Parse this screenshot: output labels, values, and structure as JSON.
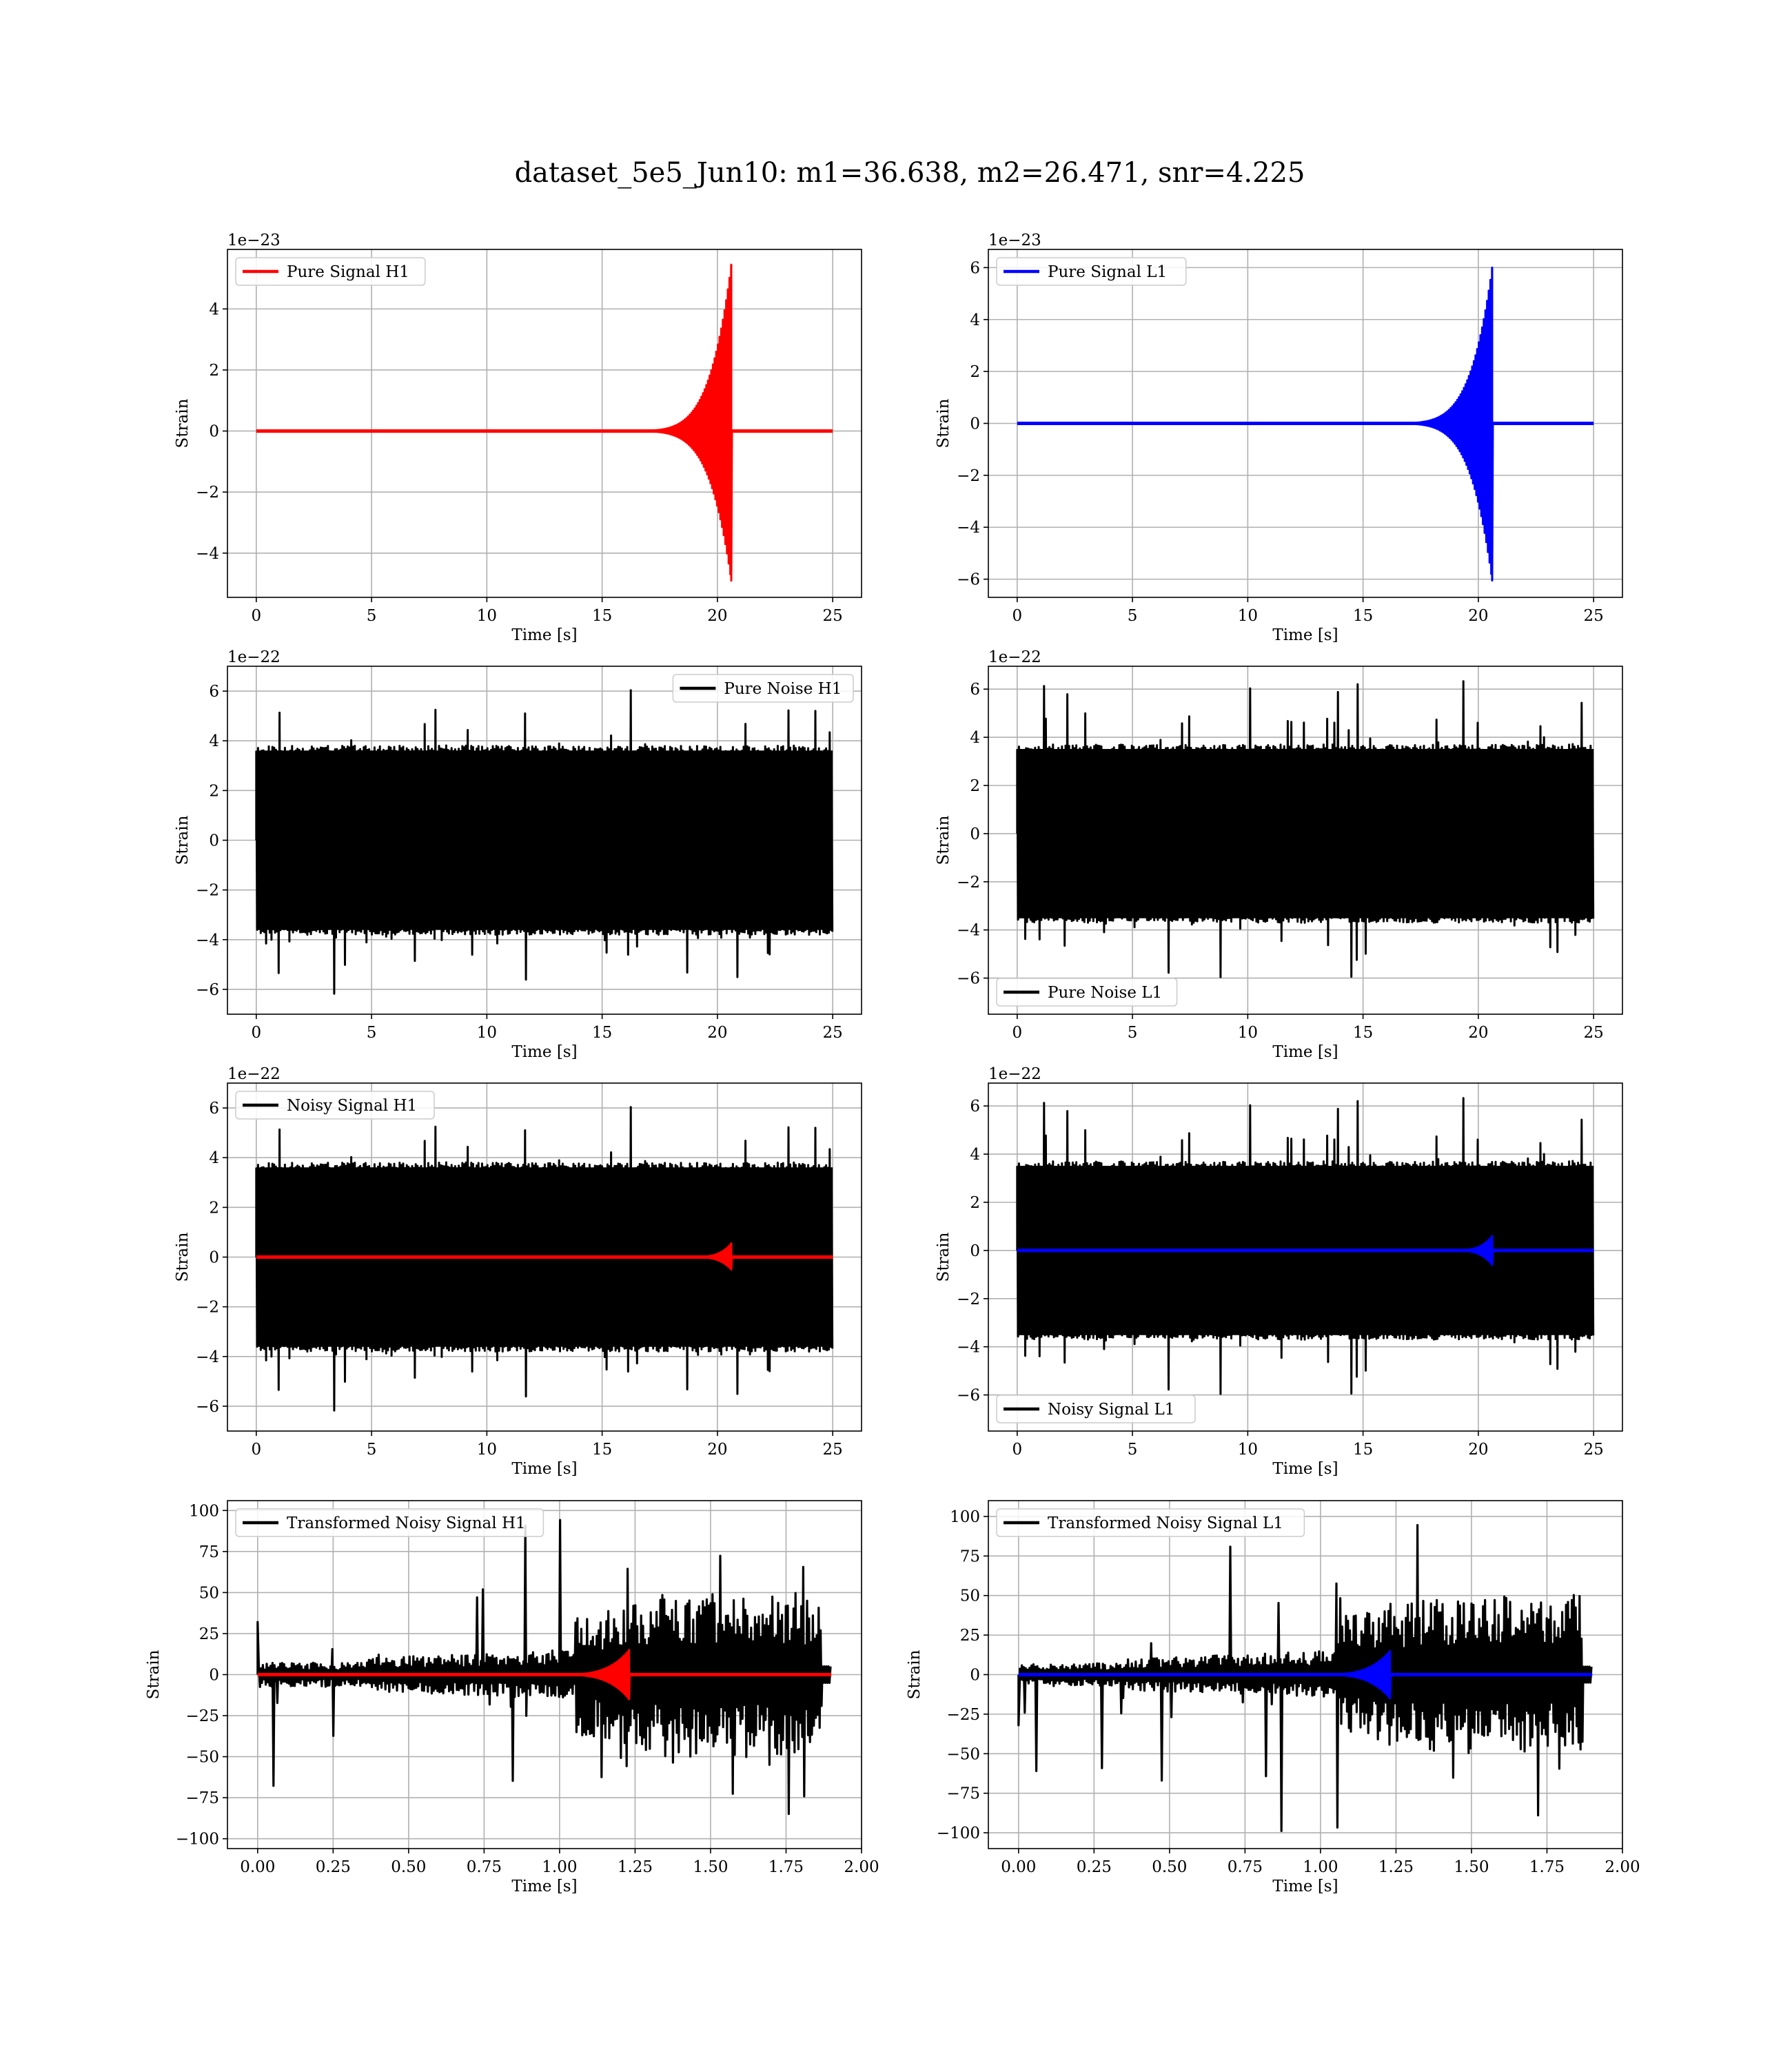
{
  "suptitle": "dataset_5e5_Jun10: m1=36.638, m2=26.471, snr=4.225",
  "chart_data": [
    {
      "type": "line",
      "id": "p1",
      "ylabel": "Strain",
      "xlabel": "Time [s]",
      "offset": "1e−23",
      "xlim": [
        -1.25,
        26.25
      ],
      "ylim": [
        -5.45,
        5.95
      ],
      "xticks": [
        0,
        5,
        10,
        15,
        20,
        25
      ],
      "xtick_labels": [
        "0",
        "5",
        "10",
        "15",
        "20",
        "25"
      ],
      "yticks": [
        -4,
        -2,
        0,
        2,
        4
      ],
      "ytick_labels": [
        "−4",
        "−2",
        "0",
        "2",
        "4"
      ],
      "legend_loc": "upper-left",
      "series": [
        {
          "name": "Pure Signal H1",
          "color": "#ff0000",
          "kind": "chirp",
          "x_range": [
            0,
            25
          ],
          "merger_x": 20.6,
          "start_x": 15.0,
          "peak_pos": 5.45,
          "peak_neg": -4.9,
          "stem": 1.6
        }
      ]
    },
    {
      "type": "line",
      "id": "p2",
      "ylabel": "Strain",
      "xlabel": "Time [s]",
      "offset": "1e−23",
      "xlim": [
        -1.25,
        26.25
      ],
      "ylim": [
        -6.7,
        6.7
      ],
      "xticks": [
        0,
        5,
        10,
        15,
        20,
        25
      ],
      "xtick_labels": [
        "0",
        "5",
        "10",
        "15",
        "20",
        "25"
      ],
      "yticks": [
        -6,
        -4,
        -2,
        0,
        2,
        4,
        6
      ],
      "ytick_labels": [
        "−6",
        "−4",
        "−2",
        "0",
        "2",
        "4",
        "6"
      ],
      "legend_loc": "upper-left",
      "series": [
        {
          "name": "Pure Signal L1",
          "color": "#0000ff",
          "kind": "chirp",
          "x_range": [
            0,
            25
          ],
          "merger_x": 20.6,
          "start_x": 15.0,
          "peak_pos": 6.0,
          "peak_neg": -6.05,
          "stem": 1.75
        }
      ]
    },
    {
      "type": "line",
      "id": "p3",
      "ylabel": "Strain",
      "xlabel": "Time [s]",
      "offset": "1e−22",
      "xlim": [
        -1.25,
        26.25
      ],
      "ylim": [
        -7.0,
        7.0
      ],
      "xticks": [
        0,
        5,
        10,
        15,
        20,
        25
      ],
      "xtick_labels": [
        "0",
        "5",
        "10",
        "15",
        "20",
        "25"
      ],
      "yticks": [
        -6,
        -4,
        -2,
        0,
        2,
        4,
        6
      ],
      "ytick_labels": [
        "−6",
        "−4",
        "−2",
        "0",
        "2",
        "4",
        "6"
      ],
      "legend_loc": "upper-right",
      "series": [
        {
          "name": "Pure Noise H1",
          "color": "#000000",
          "kind": "noise",
          "x_range": [
            0,
            25
          ],
          "band": [
            -3.8,
            3.8
          ],
          "spike_max": 6.2,
          "seed": 11
        }
      ]
    },
    {
      "type": "line",
      "id": "p4",
      "ylabel": "Strain",
      "xlabel": "Time [s]",
      "offset": "1e−22",
      "xlim": [
        -1.25,
        26.25
      ],
      "ylim": [
        -7.5,
        6.95
      ],
      "xticks": [
        0,
        5,
        10,
        15,
        20,
        25
      ],
      "xtick_labels": [
        "0",
        "5",
        "10",
        "15",
        "20",
        "25"
      ],
      "yticks": [
        -6,
        -4,
        -2,
        0,
        2,
        4,
        6
      ],
      "ytick_labels": [
        "−6",
        "−4",
        "−2",
        "0",
        "2",
        "4",
        "6"
      ],
      "legend_loc": "lower-left",
      "series": [
        {
          "name": "Pure Noise L1",
          "color": "#000000",
          "kind": "noise",
          "x_range": [
            0,
            25
          ],
          "band": [
            -3.7,
            3.7
          ],
          "spike_max": 6.4,
          "seed": 23
        }
      ]
    },
    {
      "type": "line",
      "id": "p5",
      "ylabel": "Strain",
      "xlabel": "Time [s]",
      "offset": "1e−22",
      "xlim": [
        -1.25,
        26.25
      ],
      "ylim": [
        -7.0,
        7.0
      ],
      "xticks": [
        0,
        5,
        10,
        15,
        20,
        25
      ],
      "xtick_labels": [
        "0",
        "5",
        "10",
        "15",
        "20",
        "25"
      ],
      "yticks": [
        -6,
        -4,
        -2,
        0,
        2,
        4,
        6
      ],
      "ytick_labels": [
        "−6",
        "−4",
        "−2",
        "0",
        "2",
        "4",
        "6"
      ],
      "legend_loc": "upper-left",
      "series": [
        {
          "name": "Noisy Signal H1",
          "color": "#000000",
          "kind": "noise",
          "x_range": [
            0,
            25
          ],
          "band": [
            -3.8,
            3.8
          ],
          "spike_max": 6.2,
          "seed": 11
        },
        {
          "name": "",
          "color": "#ff0000",
          "kind": "chirp",
          "x_range": [
            0,
            25
          ],
          "merger_x": 20.6,
          "start_x": 18.5,
          "peak_pos": 0.55,
          "peak_neg": -0.5,
          "stem": 0.0
        }
      ]
    },
    {
      "type": "line",
      "id": "p6",
      "ylabel": "Strain",
      "xlabel": "Time [s]",
      "offset": "1e−22",
      "xlim": [
        -1.25,
        26.25
      ],
      "ylim": [
        -7.5,
        6.95
      ],
      "xticks": [
        0,
        5,
        10,
        15,
        20,
        25
      ],
      "xtick_labels": [
        "0",
        "5",
        "10",
        "15",
        "20",
        "25"
      ],
      "yticks": [
        -6,
        -4,
        -2,
        0,
        2,
        4,
        6
      ],
      "ytick_labels": [
        "−6",
        "−4",
        "−2",
        "0",
        "2",
        "4",
        "6"
      ],
      "legend_loc": "lower-left",
      "series": [
        {
          "name": "Noisy Signal L1",
          "color": "#000000",
          "kind": "noise",
          "x_range": [
            0,
            25
          ],
          "band": [
            -3.7,
            3.7
          ],
          "spike_max": 6.4,
          "seed": 23
        },
        {
          "name": "",
          "color": "#0000ff",
          "kind": "chirp",
          "x_range": [
            0,
            25
          ],
          "merger_x": 20.6,
          "start_x": 18.5,
          "peak_pos": 0.6,
          "peak_neg": -0.6,
          "stem": 0.0
        }
      ]
    },
    {
      "type": "line",
      "id": "p7",
      "ylabel": "Strain",
      "xlabel": "Time [s]",
      "offset": "",
      "xlim": [
        -0.1,
        2.0
      ],
      "ylim": [
        -106,
        106
      ],
      "xticks": [
        0,
        0.25,
        0.5,
        0.75,
        1.0,
        1.25,
        1.5,
        1.75,
        2.0
      ],
      "xtick_labels": [
        "0.00",
        "0.25",
        "0.50",
        "0.75",
        "1.00",
        "1.25",
        "1.50",
        "1.75",
        "2.00"
      ],
      "yticks": [
        -100,
        -75,
        -50,
        -25,
        0,
        25,
        50,
        75,
        100
      ],
      "ytick_labels": [
        "−100",
        "−75",
        "−50",
        "−25",
        "0",
        "25",
        "50",
        "75",
        "100"
      ],
      "legend_loc": "upper-left",
      "series": [
        {
          "name": "Transformed Noisy Signal H1",
          "color": "#000000",
          "kind": "tnoise",
          "x_range": [
            0,
            1.9
          ],
          "low_amp": 9,
          "rise_x": 1.1,
          "high_amp": 50,
          "spike_max": 95,
          "end_x": 1.87,
          "seed": 37,
          "start_spike": 32
        },
        {
          "name": "",
          "color": "#ff0000",
          "kind": "chirp",
          "x_range": [
            0,
            1.9
          ],
          "merger_x": 1.23,
          "start_x": 0.95,
          "peak_pos": 15,
          "peak_neg": -15,
          "stem": 0.0
        }
      ]
    },
    {
      "type": "line",
      "id": "p8",
      "ylabel": "Strain",
      "xlabel": "Time [s]",
      "offset": "",
      "xlim": [
        -0.1,
        2.0
      ],
      "ylim": [
        -110,
        110
      ],
      "xticks": [
        0,
        0.25,
        0.5,
        0.75,
        1.0,
        1.25,
        1.5,
        1.75,
        2.0
      ],
      "xtick_labels": [
        "0.00",
        "0.25",
        "0.50",
        "0.75",
        "1.00",
        "1.25",
        "1.50",
        "1.75",
        "2.00"
      ],
      "yticks": [
        -100,
        -75,
        -50,
        -25,
        0,
        25,
        50,
        75,
        100
      ],
      "ytick_labels": [
        "−100",
        "−75",
        "−50",
        "−25",
        "0",
        "25",
        "50",
        "75",
        "100"
      ],
      "legend_loc": "upper-left",
      "series": [
        {
          "name": "Transformed Noisy Signal L1",
          "color": "#000000",
          "kind": "tnoise",
          "x_range": [
            0,
            1.9
          ],
          "low_amp": 9,
          "rise_x": 1.1,
          "high_amp": 50,
          "spike_max": 100,
          "end_x": 1.87,
          "seed": 53,
          "start_spike": -32
        },
        {
          "name": "",
          "color": "#0000ff",
          "kind": "chirp",
          "x_range": [
            0,
            1.9
          ],
          "merger_x": 1.23,
          "start_x": 0.95,
          "peak_pos": 15,
          "peak_neg": -15,
          "stem": 0.0
        }
      ]
    }
  ]
}
